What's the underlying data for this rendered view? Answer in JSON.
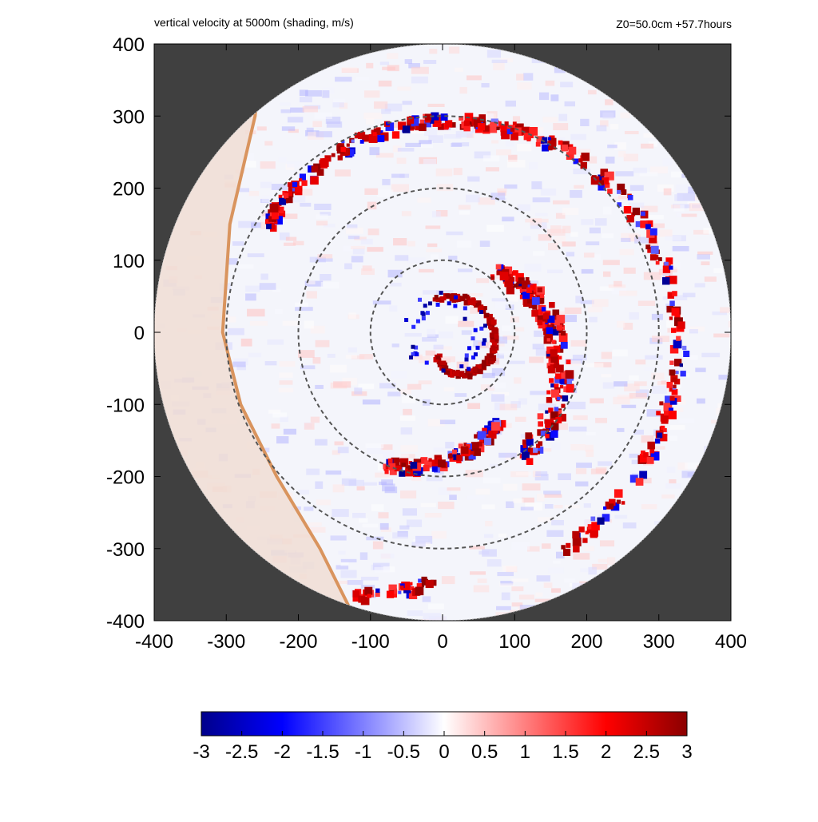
{
  "chart_data": {
    "type": "heatmap",
    "title": "vertical velocity at 5000m (shading, m/s)",
    "subtitle": "Z0=50.0cm  +57.7hours",
    "xlabel": "",
    "ylabel": "",
    "xlim": [
      -400,
      400
    ],
    "ylim": [
      -400,
      400
    ],
    "x_ticks": [
      "-400",
      "-300",
      "-200",
      "-100",
      "0",
      "100",
      "200",
      "300",
      "400"
    ],
    "y_ticks": [
      "400",
      "300",
      "200",
      "100",
      "0",
      "-100",
      "-200",
      "-300",
      "-400"
    ],
    "colorbar": {
      "min": -3,
      "max": 3,
      "ticks": [
        "-3",
        "-2.5",
        "-2",
        "-1.5",
        "-1",
        "-0.5",
        "0",
        "0.5",
        "1",
        "1.5",
        "2",
        "2.5",
        "3"
      ]
    },
    "domain_radius": 400,
    "range_rings": [
      100,
      200,
      300
    ],
    "colors": {
      "negative": "#00008b",
      "mid_negative": "#0000ff",
      "zero": "#ffffff",
      "mid_positive": "#ff0000",
      "positive": "#8b0000",
      "outside_domain": "#404040",
      "coastline": "#d9945e",
      "land": "#f0ddd4",
      "ring": "#555555"
    }
  }
}
